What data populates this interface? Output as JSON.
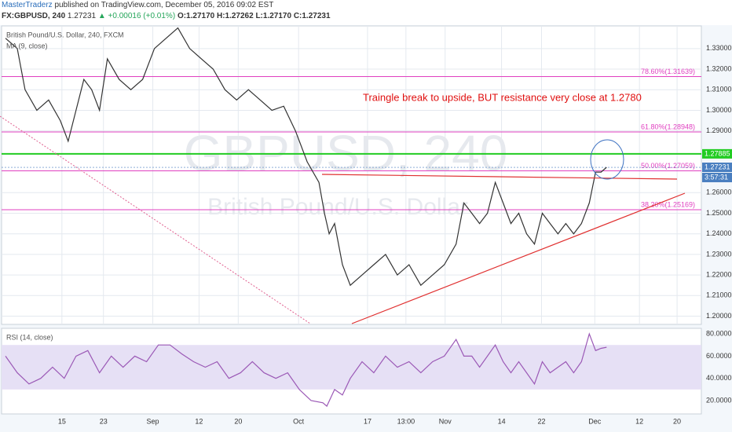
{
  "header": {
    "publisher": "MasterTraderz",
    "published": "published on TradingView.com, December 05, 2016 09:02 EST",
    "symbol": "FX:GBPUSD, 240",
    "last": "1.27231",
    "change": "▲ +0.00016 (+0.01%)",
    "ohlc": "O:1.27170 H:1.27262 L:1.27170 C:1.27231"
  },
  "chart_data": [
    {
      "type": "line",
      "legend": [
        "British Pound/U.S. Dollar, 240, FXCM",
        "MA (9, close)"
      ],
      "watermark": [
        "GBPUSD, 240",
        "British Pound/U.S. Dollar"
      ],
      "annotation": "Traingle break to upside, BUT resistance very close at 1.2780",
      "color": "#333333",
      "xlim": [
        0,
        893
      ],
      "xticks": [
        {
          "value": 77,
          "label": "15"
        },
        {
          "value": 130,
          "label": "23"
        },
        {
          "value": 193,
          "label": "Sep"
        },
        {
          "value": 252,
          "label": "12"
        },
        {
          "value": 302,
          "label": "20"
        },
        {
          "value": 379,
          "label": "Oct"
        },
        {
          "value": 467,
          "label": "17"
        },
        {
          "value": 516,
          "label": "13:00"
        },
        {
          "value": 566,
          "label": "Nov"
        },
        {
          "value": 638,
          "label": "14"
        },
        {
          "value": 689,
          "label": "22"
        },
        {
          "value": 757,
          "label": "Dec"
        },
        {
          "value": 814,
          "label": "12"
        },
        {
          "value": 862,
          "label": "20"
        }
      ],
      "ylim": [
        1.196,
        1.341
      ],
      "yticks": [
        {
          "value": 1.2,
          "label": "1.20000"
        },
        {
          "value": 1.21,
          "label": "1.21000"
        },
        {
          "value": 1.22,
          "label": "1.22000"
        },
        {
          "value": 1.23,
          "label": "1.23000"
        },
        {
          "value": 1.24,
          "label": "1.24000"
        },
        {
          "value": 1.25,
          "label": "1.25000"
        },
        {
          "value": 1.26,
          "label": "1.26000"
        },
        {
          "value": 1.29,
          "label": "1.29000"
        },
        {
          "value": 1.3,
          "label": "1.30000"
        },
        {
          "value": 1.31,
          "label": "1.31000"
        },
        {
          "value": 1.32,
          "label": "1.32000"
        },
        {
          "value": 1.33,
          "label": "1.33000"
        }
      ],
      "grid": true,
      "fib_levels": [
        {
          "value": 1.31639,
          "label": "78.60%(1.31639)"
        },
        {
          "value": 1.28948,
          "label": "61.80%(1.28948)"
        },
        {
          "value": 1.27059,
          "label": "50.00%(1.27059)"
        },
        {
          "value": 1.25169,
          "label": "38.20%(1.25169)"
        }
      ],
      "fib_color": "#e040c0",
      "price_labels": [
        {
          "value": 1.27885,
          "label": "1.27885",
          "color": "#22cc22"
        },
        {
          "value": 1.27231,
          "label": "1.27231",
          "color": "#4a7fc0"
        }
      ],
      "countdown": "3:57:31",
      "x": [
        5,
        20,
        30,
        45,
        60,
        75,
        85,
        95,
        105,
        115,
        125,
        135,
        150,
        165,
        180,
        195,
        210,
        225,
        240,
        255,
        270,
        285,
        300,
        315,
        330,
        345,
        360,
        375,
        390,
        405,
        412,
        418,
        425,
        435,
        445,
        460,
        475,
        490,
        505,
        520,
        535,
        550,
        565,
        580,
        590,
        600,
        610,
        620,
        630,
        640,
        650,
        660,
        670,
        680,
        690,
        700,
        710,
        720,
        730,
        740,
        750,
        758,
        765,
        772
      ],
      "values": [
        1.335,
        1.33,
        1.31,
        1.3,
        1.305,
        1.295,
        1.285,
        1.3,
        1.315,
        1.31,
        1.3,
        1.325,
        1.315,
        1.31,
        1.315,
        1.33,
        1.335,
        1.34,
        1.33,
        1.325,
        1.32,
        1.31,
        1.305,
        1.31,
        1.305,
        1.3,
        1.302,
        1.29,
        1.275,
        1.265,
        1.25,
        1.24,
        1.245,
        1.225,
        1.215,
        1.22,
        1.225,
        1.23,
        1.22,
        1.225,
        1.215,
        1.22,
        1.225,
        1.235,
        1.255,
        1.25,
        1.245,
        1.25,
        1.265,
        1.255,
        1.245,
        1.25,
        1.24,
        1.235,
        1.25,
        1.245,
        1.24,
        1.245,
        1.24,
        1.245,
        1.255,
        1.27,
        1.27,
        1.2723
      ]
    },
    {
      "type": "line",
      "legend": [
        "RSI (14, close)"
      ],
      "color": "#9b59b6",
      "band": [
        30,
        70
      ],
      "ylim": [
        8,
        85
      ],
      "yticks": [
        {
          "value": 20,
          "label": "20.0000"
        },
        {
          "value": 40,
          "label": "40.0000"
        },
        {
          "value": 60,
          "label": "60.0000"
        },
        {
          "value": 80,
          "label": "80.0000"
        }
      ],
      "x": [
        5,
        20,
        35,
        50,
        65,
        80,
        95,
        110,
        125,
        140,
        155,
        170,
        185,
        200,
        215,
        230,
        245,
        260,
        275,
        290,
        305,
        320,
        335,
        350,
        365,
        380,
        395,
        410,
        415,
        425,
        435,
        445,
        460,
        475,
        490,
        505,
        520,
        535,
        550,
        565,
        580,
        590,
        600,
        610,
        620,
        630,
        640,
        650,
        660,
        670,
        680,
        690,
        700,
        710,
        720,
        730,
        740,
        750,
        758,
        765,
        772
      ],
      "values": [
        60,
        45,
        35,
        40,
        50,
        40,
        60,
        65,
        45,
        60,
        50,
        60,
        55,
        70,
        70,
        62,
        55,
        50,
        55,
        40,
        45,
        55,
        45,
        40,
        45,
        30,
        20,
        18,
        15,
        30,
        25,
        40,
        55,
        45,
        60,
        50,
        55,
        45,
        55,
        60,
        75,
        60,
        60,
        50,
        60,
        70,
        55,
        45,
        55,
        45,
        35,
        55,
        45,
        50,
        55,
        45,
        55,
        80,
        65,
        67,
        68
      ]
    }
  ]
}
